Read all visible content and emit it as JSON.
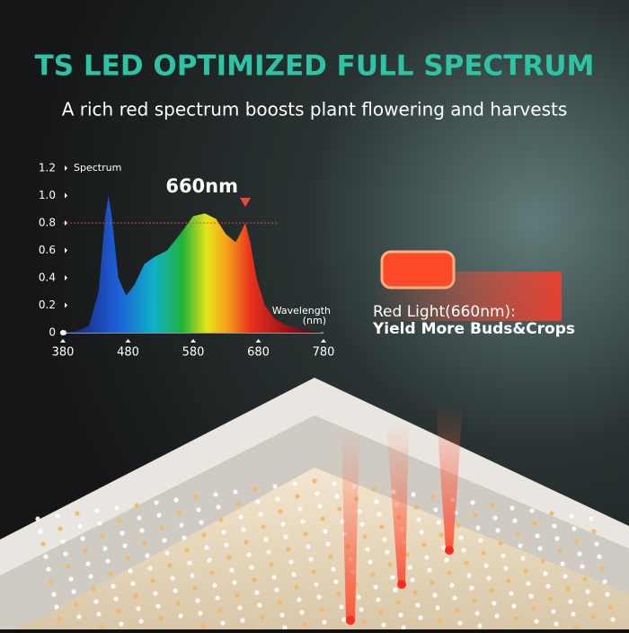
{
  "header": {
    "title": "TS LED OPTIMIZED FULL SPECTRUM",
    "subtitle": "A rich red spectrum boosts plant flowering and harvests"
  },
  "chart_data": {
    "type": "area",
    "y_label": "Spectrum",
    "x_label": "Wavelength",
    "x_unit": "(nm)",
    "x": [
      380,
      400,
      420,
      435,
      445,
      450,
      455,
      465,
      477,
      490,
      505,
      520,
      540,
      560,
      580,
      598,
      615,
      630,
      645,
      652,
      660,
      668,
      677,
      690,
      705,
      725,
      750,
      780
    ],
    "values": [
      0,
      0.01,
      0.05,
      0.3,
      0.85,
      1.0,
      0.85,
      0.4,
      0.27,
      0.35,
      0.5,
      0.55,
      0.6,
      0.72,
      0.85,
      0.87,
      0.83,
      0.72,
      0.66,
      0.72,
      0.8,
      0.65,
      0.4,
      0.2,
      0.1,
      0.05,
      0.02,
      0
    ],
    "xlim": [
      380,
      780
    ],
    "xticks": [
      380,
      480,
      580,
      680,
      780
    ],
    "ylim": [
      0,
      1.2
    ],
    "yticks": [
      0,
      0.2,
      0.4,
      0.6,
      {
        "value": 0.8,
        "label": "0.8"
      },
      {
        "value": 1,
        "label": "1.0"
      },
      1.2
    ],
    "annotation": {
      "text": "660nm",
      "x": 660,
      "y": 0.8,
      "color": "#e8473a"
    }
  },
  "callout": {
    "line1": "Red Light(660nm):",
    "line2": "Yield More Buds&Crops"
  }
}
